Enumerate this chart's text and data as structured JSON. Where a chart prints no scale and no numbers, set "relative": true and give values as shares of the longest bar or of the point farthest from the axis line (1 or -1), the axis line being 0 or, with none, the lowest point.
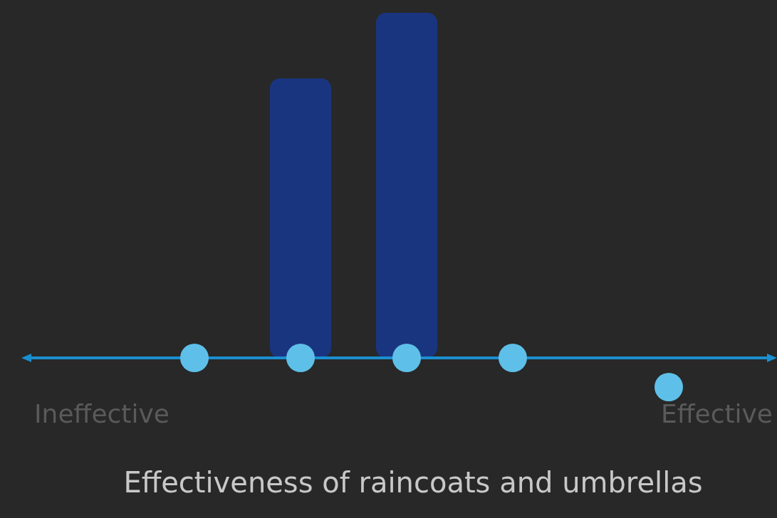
{
  "chart_data": {
    "type": "bar",
    "title": "Effectiveness of raincoats and umbrellas",
    "categories": [
      null,
      null
    ],
    "values": [
      0.81,
      1
    ],
    "color": "#1a3580",
    "relative": true,
    "annotations": [
      "Ineffective",
      "Effective"
    ]
  }
}
